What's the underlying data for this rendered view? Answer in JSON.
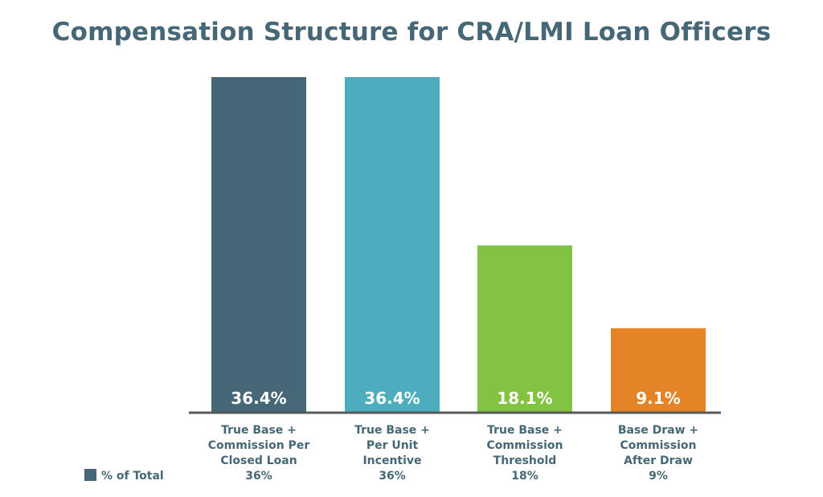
{
  "chart_data": {
    "type": "bar",
    "title": "Compensation Structure for CRA/LMI Loan Officers",
    "xlabel": "",
    "ylabel": "",
    "ylim": [
      0,
      36.4
    ],
    "grid": false,
    "legend_position": "bottom-left",
    "categories": [
      [
        "True Base +",
        "Commission Per",
        "Closed Loan",
        "36%"
      ],
      [
        "True Base +",
        "Per Unit",
        "Incentive",
        "36%"
      ],
      [
        "True Base +",
        "Commission",
        "Threshold",
        "18%"
      ],
      [
        "Base Draw +",
        "Commission",
        "After Draw",
        "9%"
      ]
    ],
    "series": [
      {
        "name": "% of Total",
        "values": [
          36.4,
          36.4,
          18.1,
          9.1
        ],
        "labels": [
          "36.4%",
          "36.4%",
          "18.1%",
          "9.1%"
        ]
      }
    ],
    "colors": [
      "#466876",
      "#4badbd",
      "#82c341",
      "#e58426"
    ],
    "legend_color": "#466876",
    "axis_color": "#58595b"
  }
}
